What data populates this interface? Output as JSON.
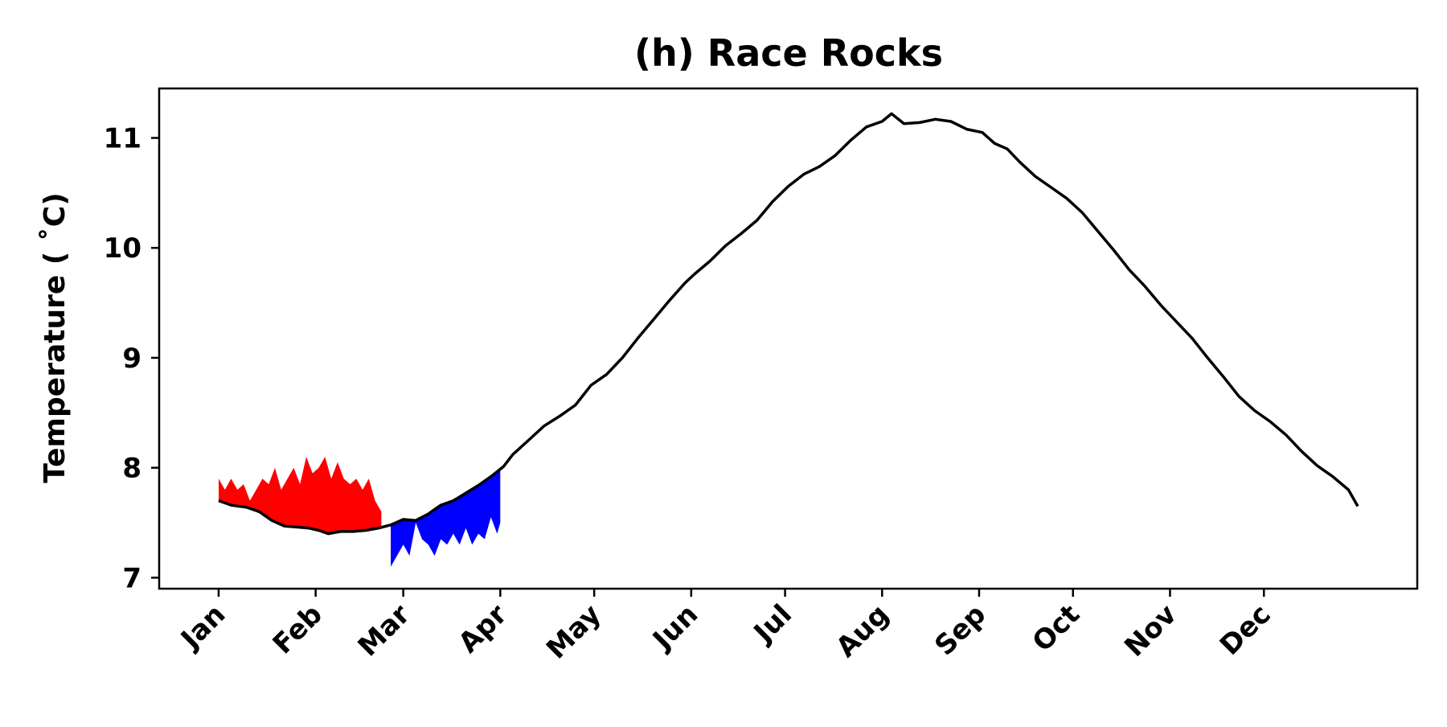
{
  "chart_data": {
    "type": "line",
    "title": "(h) Race Rocks",
    "xlabel": "",
    "ylabel": "Temperature ($^\\circ$C)",
    "ylabel_display": "Temperature ( ˚C)",
    "ylim": [
      6.9,
      11.45
    ],
    "yticks": [
      7,
      8,
      9,
      10,
      11
    ],
    "xlim": [
      -18,
      384
    ],
    "x_units": "day of year",
    "x_ticks": [
      {
        "day": 1,
        "label": "Jan"
      },
      {
        "day": 32,
        "label": "Feb"
      },
      {
        "day": 60,
        "label": "Mar"
      },
      {
        "day": 91,
        "label": "Apr"
      },
      {
        "day": 121,
        "label": "May"
      },
      {
        "day": 152,
        "label": "Jun"
      },
      {
        "day": 182,
        "label": "Jul"
      },
      {
        "day": 213,
        "label": "Aug"
      },
      {
        "day": 244,
        "label": "Sep"
      },
      {
        "day": 274,
        "label": "Oct"
      },
      {
        "day": 305,
        "label": "Nov"
      },
      {
        "day": 335,
        "label": "Dec"
      }
    ],
    "grid": false,
    "colors": {
      "line": "#000000",
      "warm": "#ff0000",
      "cold": "#0000ff"
    },
    "series": [
      {
        "values": [
          [
            1,
            7.7
          ],
          [
            5,
            7.66
          ],
          [
            10,
            7.64
          ],
          [
            14,
            7.6
          ],
          [
            18,
            7.52
          ],
          [
            22,
            7.47
          ],
          [
            26,
            7.46
          ],
          [
            30,
            7.45
          ],
          [
            33,
            7.43
          ],
          [
            36,
            7.4
          ],
          [
            40,
            7.42
          ],
          [
            44,
            7.42
          ],
          [
            48,
            7.43
          ],
          [
            52,
            7.45
          ],
          [
            56,
            7.48
          ],
          [
            60,
            7.53
          ],
          [
            64,
            7.52
          ],
          [
            68,
            7.58
          ],
          [
            72,
            7.66
          ],
          [
            76,
            7.7
          ],
          [
            80,
            7.77
          ],
          [
            84,
            7.84
          ],
          [
            88,
            7.92
          ],
          [
            92,
            8.01
          ],
          [
            95,
            8.12
          ],
          [
            100,
            8.25
          ],
          [
            105,
            8.38
          ],
          [
            110,
            8.47
          ],
          [
            115,
            8.57
          ],
          [
            120,
            8.75
          ],
          [
            125,
            8.85
          ],
          [
            130,
            9.0
          ],
          [
            135,
            9.18
          ],
          [
            140,
            9.35
          ],
          [
            145,
            9.52
          ],
          [
            150,
            9.68
          ],
          [
            153,
            9.76
          ],
          [
            158,
            9.88
          ],
          [
            163,
            10.02
          ],
          [
            168,
            10.13
          ],
          [
            173,
            10.25
          ],
          [
            178,
            10.42
          ],
          [
            183,
            10.56
          ],
          [
            188,
            10.67
          ],
          [
            193,
            10.74
          ],
          [
            198,
            10.84
          ],
          [
            203,
            10.98
          ],
          [
            208,
            11.1
          ],
          [
            213,
            11.15
          ],
          [
            216,
            11.22
          ],
          [
            220,
            11.13
          ],
          [
            225,
            11.14
          ],
          [
            230,
            11.17
          ],
          [
            235,
            11.15
          ],
          [
            240,
            11.08
          ],
          [
            245,
            11.05
          ],
          [
            249,
            10.95
          ],
          [
            253,
            10.9
          ],
          [
            257,
            10.78
          ],
          [
            262,
            10.65
          ],
          [
            267,
            10.55
          ],
          [
            272,
            10.45
          ],
          [
            277,
            10.32
          ],
          [
            282,
            10.15
          ],
          [
            287,
            9.98
          ],
          [
            292,
            9.8
          ],
          [
            297,
            9.65
          ],
          [
            302,
            9.48
          ],
          [
            307,
            9.33
          ],
          [
            312,
            9.18
          ],
          [
            317,
            9.0
          ],
          [
            322,
            8.83
          ],
          [
            327,
            8.65
          ],
          [
            332,
            8.52
          ],
          [
            337,
            8.42
          ],
          [
            342,
            8.3
          ],
          [
            347,
            8.15
          ],
          [
            352,
            8.02
          ],
          [
            357,
            7.92
          ],
          [
            362,
            7.8
          ],
          [
            365,
            7.65
          ]
        ]
      }
    ],
    "warm_band": {
      "x": [
        1,
        3,
        5,
        7,
        9,
        11,
        13,
        15,
        17,
        19,
        21,
        23,
        25,
        27,
        29,
        31,
        33,
        35,
        37,
        39,
        41,
        43,
        45,
        47,
        49,
        51,
        53
      ],
      "upper": [
        7.9,
        7.8,
        7.9,
        7.8,
        7.85,
        7.7,
        7.8,
        7.9,
        7.85,
        8.0,
        7.8,
        7.9,
        8.0,
        7.85,
        8.1,
        7.95,
        8.0,
        8.1,
        7.9,
        8.05,
        7.9,
        7.85,
        7.9,
        7.8,
        7.9,
        7.7,
        7.6
      ]
    },
    "cold_band": {
      "x": [
        56,
        58,
        60,
        62,
        64,
        66,
        68,
        70,
        72,
        74,
        76,
        78,
        80,
        82,
        84,
        86,
        88,
        90,
        91
      ],
      "lower": [
        7.1,
        7.2,
        7.3,
        7.2,
        7.5,
        7.35,
        7.3,
        7.2,
        7.35,
        7.3,
        7.4,
        7.3,
        7.45,
        7.3,
        7.4,
        7.35,
        7.55,
        7.4,
        7.5
      ]
    }
  }
}
